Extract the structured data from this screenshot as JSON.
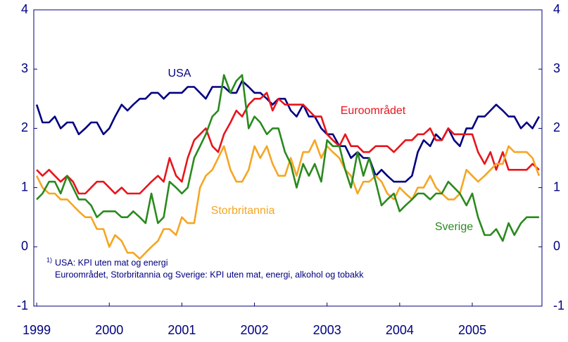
{
  "chart_data": {
    "type": "line",
    "x": [
      1999,
      1999.08,
      1999.17,
      1999.25,
      1999.33,
      1999.42,
      1999.5,
      1999.58,
      1999.67,
      1999.75,
      1999.83,
      1999.92,
      2000,
      2000.08,
      2000.17,
      2000.25,
      2000.33,
      2000.42,
      2000.5,
      2000.58,
      2000.67,
      2000.75,
      2000.83,
      2000.92,
      2001,
      2001.08,
      2001.17,
      2001.25,
      2001.33,
      2001.42,
      2001.5,
      2001.58,
      2001.67,
      2001.75,
      2001.83,
      2001.92,
      2002,
      2002.08,
      2002.17,
      2002.25,
      2002.33,
      2002.42,
      2002.5,
      2002.58,
      2002.67,
      2002.75,
      2002.83,
      2002.92,
      2003,
      2003.08,
      2003.17,
      2003.25,
      2003.33,
      2003.42,
      2003.5,
      2003.58,
      2003.67,
      2003.75,
      2003.83,
      2003.92,
      2004,
      2004.08,
      2004.17,
      2004.25,
      2004.33,
      2004.42,
      2004.5,
      2004.58,
      2004.67,
      2004.75,
      2004.83,
      2004.92,
      2005,
      2005.08,
      2005.17,
      2005.25,
      2005.33,
      2005.42,
      2005.5,
      2005.58,
      2005.67,
      2005.75,
      2005.83,
      2005.92
    ],
    "series": [
      {
        "name": "USA",
        "color": "#000080",
        "values": [
          2.4,
          2.1,
          2.1,
          2.2,
          2.0,
          2.1,
          2.1,
          1.9,
          2.0,
          2.1,
          2.1,
          1.9,
          2.0,
          2.2,
          2.4,
          2.3,
          2.4,
          2.5,
          2.5,
          2.6,
          2.6,
          2.5,
          2.6,
          2.6,
          2.6,
          2.7,
          2.7,
          2.6,
          2.5,
          2.7,
          2.7,
          2.7,
          2.6,
          2.6,
          2.8,
          2.7,
          2.6,
          2.6,
          2.5,
          2.4,
          2.5,
          2.5,
          2.3,
          2.2,
          2.4,
          2.2,
          2.2,
          2.0,
          1.9,
          1.9,
          1.7,
          1.7,
          1.5,
          1.6,
          1.5,
          1.5,
          1.2,
          1.3,
          1.2,
          1.1,
          1.1,
          1.1,
          1.2,
          1.6,
          1.8,
          1.7,
          1.9,
          1.8,
          2.0,
          1.8,
          1.7,
          2.0,
          2.0,
          2.2,
          2.2,
          2.3,
          2.4,
          2.3,
          2.2,
          2.2,
          2.0,
          2.1,
          2.0,
          2.2
        ]
      },
      {
        "name": "Euroområdet",
        "color": "#e8141c",
        "values": [
          1.3,
          1.2,
          1.3,
          1.2,
          1.1,
          1.2,
          1.1,
          0.9,
          0.9,
          1.0,
          1.1,
          1.1,
          1.0,
          0.9,
          1.0,
          0.9,
          0.9,
          0.9,
          1.0,
          1.1,
          1.2,
          1.1,
          1.5,
          1.2,
          1.1,
          1.5,
          1.8,
          1.9,
          2.0,
          1.7,
          1.6,
          1.9,
          2.1,
          2.3,
          2.2,
          2.4,
          2.5,
          2.5,
          2.6,
          2.3,
          2.5,
          2.4,
          2.4,
          2.4,
          2.4,
          2.3,
          2.2,
          2.2,
          1.9,
          1.8,
          1.7,
          1.9,
          1.7,
          1.7,
          1.6,
          1.6,
          1.7,
          1.7,
          1.7,
          1.6,
          1.7,
          1.8,
          1.8,
          1.9,
          1.9,
          2.0,
          1.8,
          1.8,
          2.0,
          1.9,
          1.9,
          1.9,
          1.9,
          1.6,
          1.4,
          1.6,
          1.3,
          1.6,
          1.3,
          1.3,
          1.3,
          1.3,
          1.4,
          1.3
        ]
      },
      {
        "name": "Storbritannia",
        "color": "#f5a623",
        "values": [
          1.2,
          1.0,
          0.9,
          0.9,
          0.8,
          0.8,
          0.7,
          0.6,
          0.5,
          0.5,
          0.3,
          0.3,
          0.0,
          0.2,
          0.1,
          -0.1,
          -0.1,
          -0.2,
          -0.1,
          0.0,
          0.1,
          0.3,
          0.3,
          0.2,
          0.5,
          0.4,
          0.4,
          1.0,
          1.2,
          1.3,
          1.5,
          1.7,
          1.3,
          1.1,
          1.1,
          1.3,
          1.7,
          1.5,
          1.7,
          1.4,
          1.2,
          1.2,
          1.5,
          1.2,
          1.6,
          1.6,
          1.8,
          1.5,
          1.7,
          1.6,
          1.5,
          1.3,
          1.2,
          0.9,
          1.1,
          1.1,
          1.2,
          1.1,
          0.9,
          0.8,
          1.0,
          0.9,
          0.8,
          1.0,
          1.0,
          1.2,
          1.0,
          0.9,
          0.8,
          0.8,
          0.9,
          1.3,
          1.2,
          1.1,
          1.2,
          1.3,
          1.4,
          1.4,
          1.7,
          1.6,
          1.6,
          1.6,
          1.5,
          1.2
        ]
      },
      {
        "name": "Sverige",
        "color": "#2a8a1e",
        "values": [
          0.8,
          0.9,
          1.1,
          1.1,
          0.9,
          1.2,
          1.0,
          0.8,
          0.8,
          0.7,
          0.5,
          0.6,
          0.6,
          0.6,
          0.5,
          0.5,
          0.6,
          0.5,
          0.4,
          0.9,
          0.4,
          0.5,
          1.1,
          1.0,
          0.9,
          1.0,
          1.5,
          1.7,
          1.9,
          2.2,
          2.3,
          2.9,
          2.6,
          2.8,
          2.9,
          2.0,
          2.2,
          2.1,
          1.9,
          2.0,
          2.0,
          1.6,
          1.4,
          1.0,
          1.4,
          1.2,
          1.4,
          1.1,
          1.8,
          1.7,
          1.7,
          1.3,
          1.0,
          1.6,
          1.2,
          1.5,
          1.1,
          0.7,
          0.8,
          0.9,
          0.6,
          0.7,
          0.8,
          0.9,
          0.9,
          0.8,
          0.9,
          0.9,
          1.1,
          1.0,
          0.9,
          0.7,
          0.9,
          0.5,
          0.2,
          0.2,
          0.3,
          0.1,
          0.4,
          0.2,
          0.4,
          0.5,
          0.5,
          0.5
        ]
      }
    ],
    "xlim": [
      1998.96,
      2005.96
    ],
    "xticks": [
      1999,
      2000,
      2001,
      2002,
      2003,
      2004,
      2005
    ],
    "ylim": [
      -1,
      4
    ],
    "yticks": [
      -1,
      0,
      1,
      2,
      3,
      4
    ],
    "y2lim": [
      -1,
      4
    ],
    "y2ticks": [
      -1,
      0,
      1,
      2,
      3,
      4
    ],
    "footnote": {
      "marker": "1)",
      "lines": [
        "USA: KPI uten mat og energi",
        "Euroområdet, Storbritannia og Sverige: KPI uten mat, energi, alkohol og tobakk"
      ]
    }
  }
}
